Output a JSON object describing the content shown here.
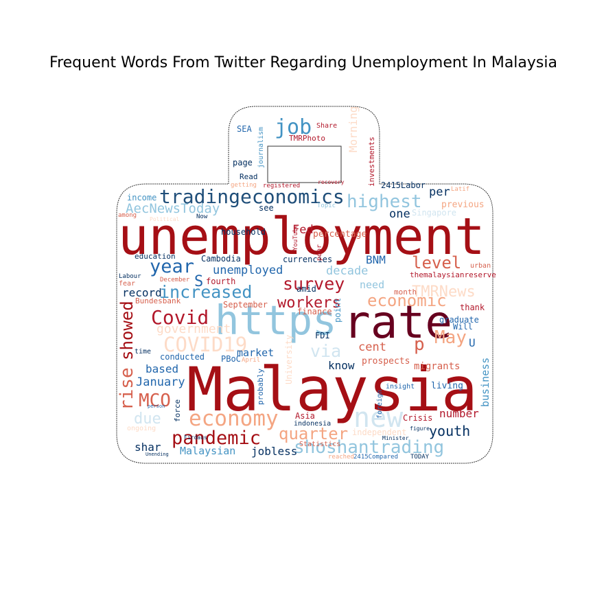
{
  "chart_data": {
    "type": "wordcloud",
    "title": "Frequent Words From Twitter Regarding Unemployment In Malaysia",
    "words": [
      "unemployment",
      "Malaysia",
      "rate",
      "https",
      "tradingeconomics",
      "job",
      "Covid",
      "year",
      "level",
      "survey",
      "increased",
      "highest",
      "economy",
      "pandemic",
      "quarter",
      "shoshantrading",
      "new",
      "workers",
      "economic",
      "TMRNews",
      "May",
      "p",
      "via",
      "COVID19",
      "government",
      "rise",
      "showed",
      "MCO",
      "due",
      "January",
      "based",
      "conducted",
      "time",
      "record",
      "S",
      "unemployed",
      "household",
      "Cambodia",
      "currencies",
      "BNM",
      "decade",
      "need",
      "month",
      "Fed",
      "percentage",
      "one",
      "per",
      "previous",
      "Singapore",
      "AecNewsToday",
      "income",
      "among",
      "Political",
      "Now",
      "education",
      "Labour",
      "fear",
      "December",
      "fourth",
      "Bundesbank",
      "September",
      "finance",
      "amid",
      "market",
      "PBoC",
      "April",
      "FDI",
      "cent",
      "know",
      "prospects",
      "migrants",
      "living",
      "insight",
      "graduate",
      "Will",
      "U",
      "thank",
      "urban",
      "themalaysianreserve",
      "business",
      "number",
      "youth",
      "Crisis",
      "Asia",
      "indonesia",
      "Statistics",
      "independent",
      "shar",
      "Malaysian",
      "jobless",
      "2415Compared",
      "TODAY",
      "reached",
      "Firdaus",
      "Minister",
      "figure",
      "Unending",
      "ongoing",
      "person",
      "force",
      "probably",
      "foreign",
      "point",
      "University",
      "poor",
      "YouTube",
      "page",
      "Read",
      "getting",
      "registered",
      "see",
      "Topic",
      "Latif",
      "2415Labor",
      "investments",
      "journalism",
      "SEA",
      "Share",
      "TMRPhoto",
      "Morning",
      "recovery"
    ]
  }
}
